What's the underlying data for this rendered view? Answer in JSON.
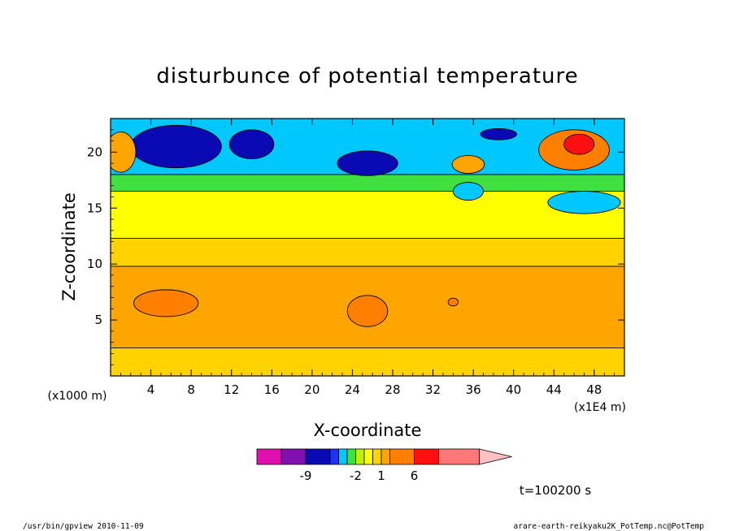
{
  "chart_data": {
    "type": "heatmap",
    "title": "disturbunce of potential temperature",
    "xlabel": "X-coordinate",
    "ylabel": "Z-coordinate",
    "x_unit": "(x1E4 m)",
    "y_unit": "(x1000 m)",
    "xlim": [
      0,
      51
    ],
    "ylim": [
      0,
      23
    ],
    "xticks": [
      4,
      8,
      12,
      16,
      20,
      24,
      28,
      32,
      36,
      40,
      44,
      48
    ],
    "yticks": [
      5,
      10,
      15,
      20
    ],
    "colorbar": {
      "colors": [
        "#e010b0",
        "#8010b0",
        "#0a0ab4",
        "#1e32ff",
        "#00c8ff",
        "#40e040",
        "#bef000",
        "#ffff00",
        "#ffd200",
        "#ffa500",
        "#ff8000",
        "#ff1010",
        "#ff7878",
        "#ffc0c0"
      ],
      "labels": [
        {
          "text": "-9",
          "after_index": 1
        },
        {
          "text": "-2",
          "after_index": 5
        },
        {
          "text": "1",
          "after_index": 8
        },
        {
          "text": "6",
          "after_index": 10
        }
      ]
    },
    "bands": [
      {
        "name": "lower-band",
        "color": "#ffd200",
        "z": [
          0,
          2.5
        ]
      },
      {
        "name": "mid-band",
        "color": "#ffa500",
        "z": [
          2.5,
          9.8
        ]
      },
      {
        "name": "upper-mid-band",
        "color": "#ffd200",
        "z": [
          9.8,
          12.3
        ]
      },
      {
        "name": "yellow-band",
        "color": "#ffff00",
        "z": [
          12.3,
          16.5
        ]
      },
      {
        "name": "green-band",
        "color": "#40e040",
        "z": [
          16.5,
          18.0
        ]
      },
      {
        "name": "cyan-band",
        "color": "#00c8ff",
        "z": [
          18.0,
          23.0
        ]
      }
    ],
    "features": [
      {
        "name": "warm-cell-x6",
        "color": "#ff8000",
        "x": 5.5,
        "z": 6.5,
        "rx": 3.2,
        "rz": 1.2
      },
      {
        "name": "warm-cell-x25",
        "color": "#ff8000",
        "x": 25.5,
        "z": 5.8,
        "rx": 2.0,
        "rz": 1.4
      },
      {
        "name": "warm-speck-x34",
        "color": "#ff8000",
        "x": 34,
        "z": 6.6,
        "rx": 0.5,
        "rz": 0.35
      },
      {
        "name": "cold-core-x6",
        "color": "#0a0ab4",
        "x": 6.5,
        "z": 20.5,
        "rx": 4.5,
        "rz": 1.9
      },
      {
        "name": "cold-core-x14",
        "color": "#0a0ab4",
        "x": 14,
        "z": 20.7,
        "rx": 2.2,
        "rz": 1.3
      },
      {
        "name": "cold-core-x25",
        "color": "#0a0ab4",
        "x": 25.5,
        "z": 19.0,
        "rx": 3.0,
        "rz": 1.1
      },
      {
        "name": "cold-core-x38",
        "color": "#0a0ab4",
        "x": 38.5,
        "z": 21.6,
        "rx": 1.8,
        "rz": 0.5
      },
      {
        "name": "warm-spot-x36",
        "color": "#ffa500",
        "x": 35.5,
        "z": 18.9,
        "rx": 1.6,
        "rz": 0.8
      },
      {
        "name": "warm-core-x46",
        "color": "#ff8000",
        "x": 46,
        "z": 20.2,
        "rx": 3.5,
        "rz": 1.8
      },
      {
        "name": "hot-core-x46",
        "color": "#ff1010",
        "x": 46.5,
        "z": 20.7,
        "rx": 1.5,
        "rz": 0.9
      },
      {
        "name": "warm-edge-x1",
        "color": "#ffa500",
        "x": 1.0,
        "z": 20.0,
        "rx": 1.5,
        "rz": 1.8
      },
      {
        "name": "cool-patch-x35",
        "color": "#00c8ff",
        "x": 35.5,
        "z": 16.5,
        "rx": 1.5,
        "rz": 0.8
      },
      {
        "name": "cool-patch-x47",
        "color": "#00c8ff",
        "x": 47,
        "z": 15.5,
        "rx": 3.6,
        "rz": 1.0
      }
    ]
  },
  "annotations": {
    "time_label": "t=100200 s",
    "footer_left": "/usr/bin/gpview  2010-11-09",
    "footer_right": "arare-earth-reikyaku2K_PotTemp.nc@PotTemp"
  }
}
